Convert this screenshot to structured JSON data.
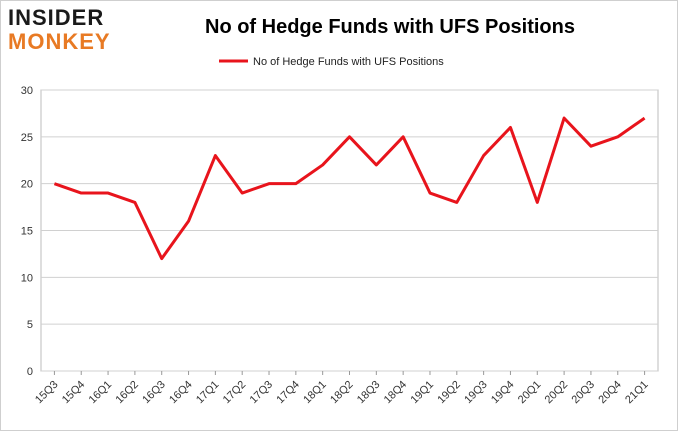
{
  "logo": {
    "line1": "INSIDER",
    "line2": "MONKEY"
  },
  "chart_data": {
    "type": "line",
    "title": "No of Hedge Funds with UFS Positions",
    "xlabel": "",
    "ylabel": "",
    "categories": [
      "15Q3",
      "15Q4",
      "16Q1",
      "16Q2",
      "16Q3",
      "16Q4",
      "17Q1",
      "17Q2",
      "17Q3",
      "17Q4",
      "18Q1",
      "18Q2",
      "18Q3",
      "18Q4",
      "19Q1",
      "19Q2",
      "19Q3",
      "19Q4",
      "20Q1",
      "20Q2",
      "20Q3",
      "20Q4",
      "21Q1"
    ],
    "series": [
      {
        "name": "No of Hedge Funds with UFS Positions",
        "values": [
          20,
          19,
          19,
          18,
          12,
          16,
          23,
          19,
          20,
          20,
          22,
          25,
          22,
          25,
          19,
          18,
          23,
          26,
          18,
          27,
          24,
          25,
          27
        ]
      }
    ],
    "ylim": [
      0,
      30
    ],
    "yticks": [
      0,
      5,
      10,
      15,
      20,
      25,
      30
    ],
    "grid": true,
    "legend": "top-center",
    "line_color": "#e8141c"
  }
}
